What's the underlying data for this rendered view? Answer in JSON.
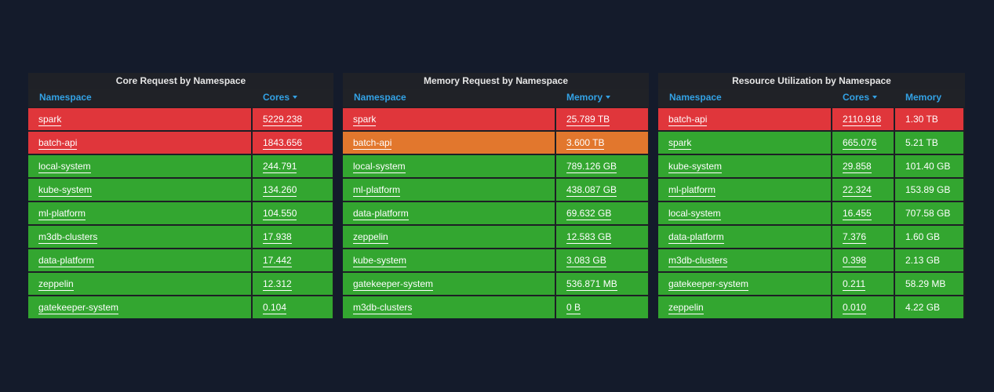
{
  "panels": [
    {
      "title": "Core Request by Namespace",
      "headers": [
        {
          "label": "Namespace",
          "sorted": false
        },
        {
          "label": "Cores",
          "sorted": true
        }
      ],
      "rows": [
        {
          "namespace": "spark",
          "value": "5229.238",
          "value_color": "red",
          "ns_color": "red"
        },
        {
          "namespace": "batch-api",
          "value": "1843.656",
          "value_color": "red",
          "ns_color": "red"
        },
        {
          "namespace": "local-system",
          "value": "244.791",
          "value_color": "green",
          "ns_color": "green"
        },
        {
          "namespace": "kube-system",
          "value": "134.260",
          "value_color": "green",
          "ns_color": "green"
        },
        {
          "namespace": "ml-platform",
          "value": "104.550",
          "value_color": "green",
          "ns_color": "green"
        },
        {
          "namespace": "m3db-clusters",
          "value": "17.938",
          "value_color": "green",
          "ns_color": "green"
        },
        {
          "namespace": "data-platform",
          "value": "17.442",
          "value_color": "green",
          "ns_color": "green"
        },
        {
          "namespace": "zeppelin",
          "value": "12.312",
          "value_color": "green",
          "ns_color": "green"
        },
        {
          "namespace": "gatekeeper-system",
          "value": "0.104",
          "value_color": "green",
          "ns_color": "green"
        }
      ]
    },
    {
      "title": "Memory Request by Namespace",
      "headers": [
        {
          "label": "Namespace",
          "sorted": false
        },
        {
          "label": "Memory",
          "sorted": true
        }
      ],
      "rows": [
        {
          "namespace": "spark",
          "value": "25.789 TB",
          "value_color": "red",
          "ns_color": "red"
        },
        {
          "namespace": "batch-api",
          "value": "3.600 TB",
          "value_color": "orange",
          "ns_color": "orange"
        },
        {
          "namespace": "local-system",
          "value": "789.126 GB",
          "value_color": "green",
          "ns_color": "green"
        },
        {
          "namespace": "ml-platform",
          "value": "438.087 GB",
          "value_color": "green",
          "ns_color": "green"
        },
        {
          "namespace": "data-platform",
          "value": "69.632 GB",
          "value_color": "green",
          "ns_color": "green"
        },
        {
          "namespace": "zeppelin",
          "value": "12.583 GB",
          "value_color": "green",
          "ns_color": "green"
        },
        {
          "namespace": "kube-system",
          "value": "3.083 GB",
          "value_color": "green",
          "ns_color": "green"
        },
        {
          "namespace": "gatekeeper-system",
          "value": "536.871 MB",
          "value_color": "green",
          "ns_color": "green"
        },
        {
          "namespace": "m3db-clusters",
          "value": "0 B",
          "value_color": "green",
          "ns_color": "green"
        }
      ]
    },
    {
      "title": "Resource Utilization by Namespace",
      "headers": [
        {
          "label": "Namespace",
          "sorted": false
        },
        {
          "label": "Cores",
          "sorted": true
        },
        {
          "label": "Memory",
          "sorted": false
        }
      ],
      "rows": [
        {
          "namespace": "batch-api",
          "value": "2110.918",
          "value2": "1.30 TB",
          "ns_color": "red",
          "value_color": "red",
          "value2_color": "red"
        },
        {
          "namespace": "spark",
          "value": "665.076",
          "value2": "5.21 TB",
          "ns_color": "green",
          "value_color": "green",
          "value2_color": "green"
        },
        {
          "namespace": "kube-system",
          "value": "29.858",
          "value2": "101.40 GB",
          "ns_color": "green",
          "value_color": "green",
          "value2_color": "green"
        },
        {
          "namespace": "ml-platform",
          "value": "22.324",
          "value2": "153.89 GB",
          "ns_color": "green",
          "value_color": "green",
          "value2_color": "green"
        },
        {
          "namespace": "local-system",
          "value": "16.455",
          "value2": "707.58 GB",
          "ns_color": "green",
          "value_color": "green",
          "value2_color": "green"
        },
        {
          "namespace": "data-platform",
          "value": "7.376",
          "value2": "1.60 GB",
          "ns_color": "green",
          "value_color": "green",
          "value2_color": "green"
        },
        {
          "namespace": "m3db-clusters",
          "value": "0.398",
          "value2": "2.13 GB",
          "ns_color": "green",
          "value_color": "green",
          "value2_color": "green"
        },
        {
          "namespace": "gatekeeper-system",
          "value": "0.211",
          "value2": "58.29 MB",
          "ns_color": "green",
          "value_color": "green",
          "value2_color": "green"
        },
        {
          "namespace": "zeppelin",
          "value": "0.010",
          "value2": "4.22 GB",
          "ns_color": "green",
          "value_color": "green",
          "value2_color": "green"
        }
      ]
    }
  ],
  "colors": {
    "red": "#e0363b",
    "orange": "#e2772d",
    "green": "#33a630",
    "header_text": "#33a2e5",
    "background": "#141b2b"
  }
}
